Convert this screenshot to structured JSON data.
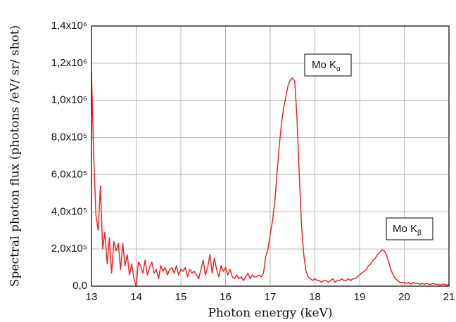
{
  "chart_data": {
    "type": "line",
    "xlabel": "Photon energy (keV)",
    "ylabel": "Spectral photon flux (photons /eV/ sr/ shot)",
    "color": "#e8262a",
    "grid": true,
    "xlim": [
      13,
      21
    ],
    "ylim": [
      0,
      1400000
    ],
    "xticks": [
      13,
      14,
      15,
      16,
      17,
      18,
      19,
      20,
      21
    ],
    "yticks": [
      {
        "value": 0,
        "label": "0,0"
      },
      {
        "value": 200000,
        "label": "2,0x10⁵"
      },
      {
        "value": 400000,
        "label": "4,0x10⁵"
      },
      {
        "value": 600000,
        "label": "6,0x10⁵"
      },
      {
        "value": 800000,
        "label": "8,0x10⁵"
      },
      {
        "value": 1000000,
        "label": "1,0x10⁶"
      },
      {
        "value": 1200000,
        "label": "1,2x10⁶"
      },
      {
        "value": 1400000,
        "label": "1,4x10⁶"
      }
    ],
    "annotations": [
      {
        "text": "Mo K",
        "subscript": "α"
      },
      {
        "text": "Mo K",
        "subscript": "β"
      }
    ],
    "x": [
      13.0,
      13.05,
      13.1,
      13.15,
      13.2,
      13.25,
      13.3,
      13.35,
      13.4,
      13.45,
      13.5,
      13.55,
      13.6,
      13.65,
      13.7,
      13.75,
      13.8,
      13.85,
      13.9,
      13.95,
      14.0,
      14.05,
      14.1,
      14.15,
      14.2,
      14.25,
      14.3,
      14.35,
      14.4,
      14.45,
      14.5,
      14.55,
      14.6,
      14.65,
      14.7,
      14.75,
      14.8,
      14.85,
      14.9,
      14.95,
      15.0,
      15.05,
      15.1,
      15.15,
      15.2,
      15.25,
      15.3,
      15.35,
      15.4,
      15.45,
      15.5,
      15.55,
      15.6,
      15.65,
      15.7,
      15.75,
      15.8,
      15.85,
      15.9,
      15.95,
      16.0,
      16.05,
      16.1,
      16.15,
      16.2,
      16.25,
      16.3,
      16.35,
      16.4,
      16.45,
      16.5,
      16.55,
      16.6,
      16.65,
      16.7,
      16.75,
      16.8,
      16.85,
      16.9,
      16.95,
      17.0,
      17.05,
      17.1,
      17.15,
      17.2,
      17.25,
      17.3,
      17.35,
      17.4,
      17.45,
      17.5,
      17.55,
      17.6,
      17.65,
      17.7,
      17.75,
      17.8,
      17.85,
      17.9,
      17.95,
      18.0,
      18.05,
      18.1,
      18.15,
      18.2,
      18.25,
      18.3,
      18.35,
      18.4,
      18.45,
      18.5,
      18.55,
      18.6,
      18.65,
      18.7,
      18.75,
      18.8,
      18.85,
      18.9,
      18.95,
      19.0,
      19.05,
      19.1,
      19.15,
      19.2,
      19.25,
      19.3,
      19.35,
      19.4,
      19.45,
      19.5,
      19.55,
      19.6,
      19.65,
      19.7,
      19.75,
      19.8,
      19.85,
      19.9,
      19.95,
      20.0,
      20.05,
      20.1,
      20.15,
      20.2,
      20.25,
      20.3,
      20.35,
      20.4,
      20.45,
      20.5,
      20.55,
      20.6,
      20.65,
      20.7,
      20.75,
      20.8,
      20.85,
      20.9,
      20.95,
      21.0
    ],
    "values": [
      1150000,
      700000,
      380000,
      300000,
      540000,
      200000,
      290000,
      120000,
      260000,
      70000,
      240000,
      190000,
      230000,
      90000,
      230000,
      110000,
      170000,
      60000,
      120000,
      40000,
      0,
      130000,
      110000,
      70000,
      140000,
      60000,
      100000,
      130000,
      70000,
      90000,
      40000,
      110000,
      80000,
      100000,
      60000,
      90000,
      100000,
      70000,
      110000,
      60000,
      90000,
      80000,
      100000,
      50000,
      90000,
      70000,
      80000,
      60000,
      40000,
      90000,
      140000,
      60000,
      100000,
      170000,
      70000,
      150000,
      90000,
      50000,
      110000,
      80000,
      100000,
      60000,
      90000,
      50000,
      40000,
      60000,
      40000,
      50000,
      30000,
      50000,
      70000,
      40000,
      60000,
      50000,
      50000,
      60000,
      50000,
      70000,
      160000,
      200000,
      280000,
      350000,
      450000,
      600000,
      750000,
      870000,
      960000,
      1020000,
      1080000,
      1110000,
      1120000,
      1100000,
      900000,
      600000,
      330000,
      170000,
      80000,
      50000,
      40000,
      30000,
      40000,
      30000,
      30000,
      20000,
      30000,
      30000,
      20000,
      30000,
      40000,
      20000,
      30000,
      30000,
      40000,
      30000,
      30000,
      40000,
      30000,
      40000,
      40000,
      50000,
      60000,
      70000,
      80000,
      90000,
      110000,
      120000,
      140000,
      150000,
      170000,
      180000,
      195000,
      190000,
      170000,
      130000,
      90000,
      60000,
      40000,
      30000,
      20000,
      20000,
      20000,
      15000,
      20000,
      10000,
      20000,
      15000,
      15000,
      10000,
      15000,
      10000,
      15000,
      10000,
      10000,
      15000,
      10000,
      10000,
      5000,
      10000,
      10000,
      5000,
      10000
    ]
  }
}
